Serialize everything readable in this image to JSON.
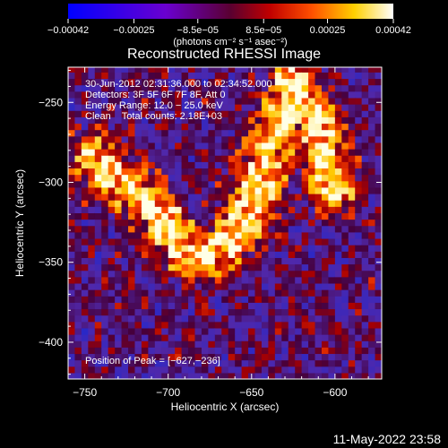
{
  "chart_data": {
    "type": "heatmap",
    "title": "Reconstructed RHESSI Image",
    "xlabel": "Heliocentric X (arcsec)",
    "ylabel": "Heliocentric Y (arcsec)",
    "xlim": [
      -760,
      -572
    ],
    "ylim": [
      -423,
      -228
    ],
    "x_ticks": [
      -750,
      -700,
      -650,
      -600
    ],
    "y_ticks": [
      -250,
      -300,
      -350,
      -400
    ],
    "x_tick_labels": [
      "−750",
      "−700",
      "−650",
      "−600"
    ],
    "y_tick_labels": [
      "−250",
      "−300",
      "−350",
      "−400"
    ],
    "colorbar": {
      "min": -0.00042,
      "max": 0.00042,
      "ticks": [
        -0.00042,
        -0.00025,
        -8.5e-05,
        8.5e-05,
        0.00025,
        0.00042
      ],
      "tick_labels": [
        "−0.00042",
        "−0.00025",
        "−8.5e−05",
        "8.5e−05",
        "0.00025",
        "0.00042"
      ],
      "label": "(photons cm⁻² s⁻¹ asec⁻²)"
    },
    "annotations": {
      "time": "30-Jun-2012 02:31:36.000 to 02:34:52.000",
      "detectors": "Detectors: 3F 5F 6F 7F 8F, Att 0",
      "energy": "Energy Range: 12.0 − 25.0 keV",
      "method": "Clean    Total counts: 2.18E+03",
      "peak": "Position of Peak = [−627,−236]"
    },
    "peak": [
      -627,
      -236
    ],
    "grid": false
  },
  "footer": {
    "timestamp": "11-May-2022 23:58"
  }
}
